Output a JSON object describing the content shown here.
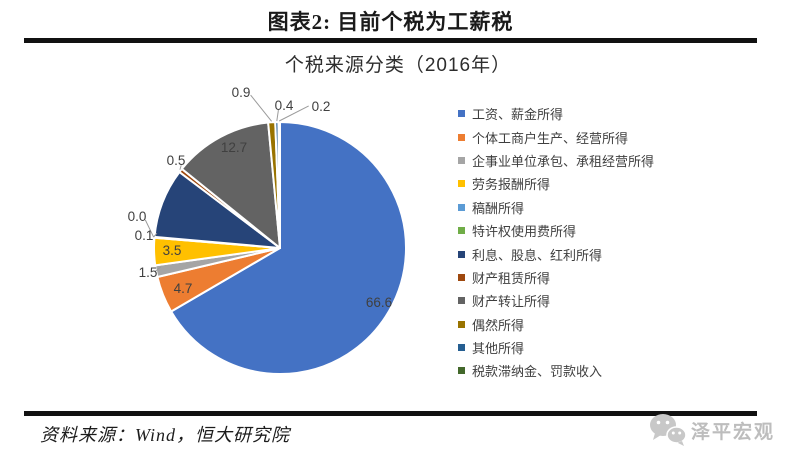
{
  "header": {
    "title": "图表2: 目前个税为工薪税"
  },
  "chart_data": {
    "type": "pie",
    "title": "个税来源分类（2016年）",
    "unit": "percent",
    "start_angle_deg": 0,
    "direction": "clockwise",
    "legend_position": "right",
    "categories": [
      "工资、薪金所得",
      "个体工商户生产、经营所得",
      "企事业单位承包、承租经营所得",
      "劳务报酬所得",
      "稿酬所得",
      "特许权使用费所得",
      "利息、股息、红利所得",
      "财产租赁所得",
      "财产转让所得",
      "偶然所得",
      "其他所得",
      "税款滞纳金、罚款收入"
    ],
    "values": [
      66.6,
      4.7,
      1.5,
      3.5,
      0.1,
      0.0,
      8.9,
      0.5,
      12.7,
      0.9,
      0.4,
      0.2
    ],
    "data_labels": [
      "66.6",
      "4.7",
      "1.5",
      "3.5",
      "0.1",
      "0.0",
      null,
      "0.5",
      "12.7",
      "0.9",
      "0.4",
      "0.2"
    ],
    "colors": [
      "#4472C4",
      "#ED7D31",
      "#A5A5A5",
      "#FFC000",
      "#5B9BD5",
      "#70AD47",
      "#264478",
      "#9E480E",
      "#636363",
      "#997300",
      "#255E91",
      "#43682B"
    ],
    "label_color": "#404040"
  },
  "footer": {
    "source": "资料来源：Wind，恒大研究院",
    "watermark": "泽平宏观"
  }
}
